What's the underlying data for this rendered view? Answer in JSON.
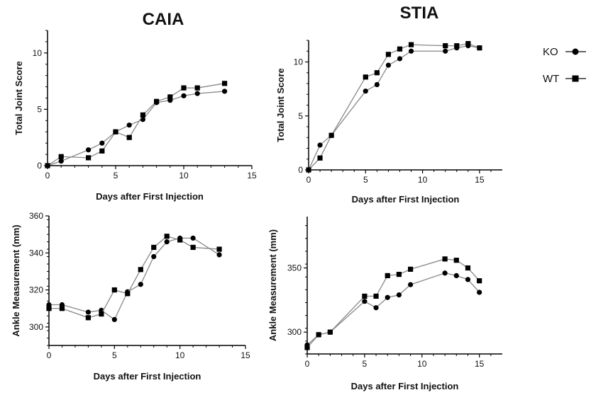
{
  "legend": {
    "placement": "top-right",
    "items": [
      {
        "label": "KO",
        "marker": "circle"
      },
      {
        "label": "WT",
        "marker": "square"
      }
    ]
  },
  "colors": {
    "line": "#888888",
    "marker": "#000000",
    "axis": "#000000"
  },
  "chart_data": [
    {
      "id": "caia-score",
      "type": "line",
      "title": "CAIA",
      "xlabel": "Days after First Injection",
      "ylabel": "Total Joint Score",
      "xlim": [
        0,
        15
      ],
      "ylim": [
        0,
        12
      ],
      "xticks": [
        0,
        5,
        10,
        15
      ],
      "yticks": [
        0,
        5,
        10
      ],
      "grid": false,
      "series": [
        {
          "name": "KO",
          "marker": "circle",
          "x": [
            0,
            1,
            3,
            4,
            5,
            6,
            7,
            8,
            9,
            10,
            11,
            13
          ],
          "y": [
            0,
            0.4,
            1.4,
            2.0,
            3.0,
            3.6,
            4.1,
            5.6,
            5.8,
            6.2,
            6.4,
            6.6
          ]
        },
        {
          "name": "WT",
          "marker": "square",
          "x": [
            0,
            1,
            3,
            4,
            5,
            6,
            7,
            8,
            9,
            10,
            11,
            13
          ],
          "y": [
            0,
            0.8,
            0.7,
            1.3,
            3.0,
            2.5,
            4.5,
            5.7,
            6.1,
            6.9,
            6.9,
            7.3
          ]
        }
      ]
    },
    {
      "id": "stia-score",
      "type": "line",
      "title": "STIA",
      "xlabel": "Days after First Injection",
      "ylabel": "Total Joint Score",
      "xlim": [
        0,
        17
      ],
      "ylim": [
        0,
        12
      ],
      "xticks": [
        0,
        5,
        10,
        15
      ],
      "yticks": [
        0,
        5,
        10
      ],
      "grid": false,
      "series": [
        {
          "name": "KO",
          "marker": "circle",
          "x": [
            0,
            1,
            2,
            5,
            6,
            7,
            8,
            9,
            12,
            13,
            14,
            15
          ],
          "y": [
            0,
            2.3,
            3.2,
            7.3,
            7.9,
            9.7,
            10.3,
            11.0,
            11.0,
            11.3,
            11.5,
            11.3
          ]
        },
        {
          "name": "WT",
          "marker": "square",
          "x": [
            0,
            1,
            2,
            5,
            6,
            7,
            8,
            9,
            12,
            13,
            14,
            15
          ],
          "y": [
            0,
            1.1,
            3.2,
            8.6,
            9.0,
            10.7,
            11.2,
            11.6,
            11.5,
            11.5,
            11.7,
            11.3
          ]
        }
      ]
    },
    {
      "id": "caia-ankle",
      "type": "line",
      "title": "",
      "xlabel": "Days after First Injection",
      "ylabel": "Ankle  Measurement (mm)",
      "xlim": [
        0,
        15
      ],
      "ylim": [
        290,
        360
      ],
      "xticks": [
        0,
        5,
        10,
        15
      ],
      "yticks": [
        300,
        320,
        340,
        360
      ],
      "grid": false,
      "series": [
        {
          "name": "KO",
          "marker": "circle",
          "x": [
            0,
            1,
            3,
            4,
            5,
            6,
            7,
            8,
            9,
            10,
            11,
            13
          ],
          "y": [
            312,
            312,
            308,
            309,
            304,
            319,
            323,
            338,
            346,
            348,
            348,
            339
          ]
        },
        {
          "name": "WT",
          "marker": "square",
          "x": [
            0,
            1,
            3,
            4,
            5,
            6,
            7,
            8,
            9,
            10,
            11,
            13
          ],
          "y": [
            310,
            310,
            305,
            307,
            320,
            318,
            331,
            343,
            349,
            347,
            343,
            342
          ]
        }
      ]
    },
    {
      "id": "stia-ankle",
      "type": "line",
      "title": "",
      "xlabel": "Days after First Injection",
      "ylabel": "Ankle  Measurement (mm)",
      "xlim": [
        0,
        17
      ],
      "ylim": [
        283,
        390
      ],
      "xticks": [
        0,
        5,
        10,
        15
      ],
      "yticks": [
        300,
        350
      ],
      "grid": false,
      "series": [
        {
          "name": "KO",
          "marker": "circle",
          "x": [
            0,
            1,
            2,
            5,
            6,
            7,
            8,
            9,
            12,
            13,
            14,
            15
          ],
          "y": [
            290,
            298,
            300,
            324,
            319,
            327,
            329,
            337,
            346,
            344,
            341,
            331
          ]
        },
        {
          "name": "WT",
          "marker": "square",
          "x": [
            0,
            1,
            2,
            5,
            6,
            7,
            8,
            9,
            12,
            13,
            14,
            15
          ],
          "y": [
            288,
            298,
            300,
            328,
            328,
            344,
            345,
            349,
            357,
            356,
            350,
            340
          ]
        }
      ]
    }
  ]
}
